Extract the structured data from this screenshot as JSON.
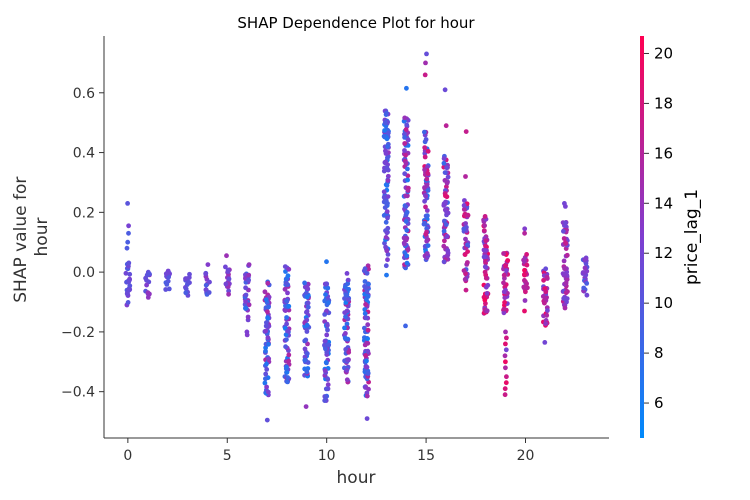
{
  "chart_data": {
    "type": "scatter",
    "title": "SHAP Dependence Plot for hour",
    "xlabel": "hour",
    "ylabel_lines": [
      "SHAP value for",
      "hour"
    ],
    "xlim": [
      -1.2,
      24.2
    ],
    "ylim": [
      -0.555,
      0.79
    ],
    "xticks": [
      0,
      5,
      10,
      15,
      20
    ],
    "yticks": [
      -0.4,
      -0.2,
      0.0,
      0.2,
      0.4,
      0.6
    ],
    "ytick_labels": [
      "−0.4",
      "−0.2",
      "0.0",
      "0.2",
      "0.4",
      "0.6"
    ],
    "grid": false,
    "colorbar": {
      "label": "price_lag_1",
      "range": [
        4.6,
        20.7
      ],
      "ticks": [
        6,
        8,
        10,
        12,
        14,
        16,
        18,
        20
      ],
      "colors": [
        "#008afb",
        "#7f3ed0",
        "#ff0052"
      ]
    },
    "groups": [
      {
        "hour": 0,
        "ymin": -0.11,
        "ymax": 0.04,
        "extra": [
          0.23,
          0.155,
          0.13,
          0.1,
          0.08
        ],
        "cmin": 9,
        "cmax": 13
      },
      {
        "hour": 1,
        "ymin": -0.085,
        "ymax": 0.0,
        "extra": [],
        "cmin": 10,
        "cmax": 14
      },
      {
        "hour": 2,
        "ymin": -0.075,
        "ymax": 0.005,
        "extra": [],
        "cmin": 9,
        "cmax": 12
      },
      {
        "hour": 3,
        "ymin": -0.08,
        "ymax": 0.0,
        "extra": [],
        "cmin": 9,
        "cmax": 12
      },
      {
        "hour": 4,
        "ymin": -0.075,
        "ymax": 0.0,
        "extra": [
          0.025
        ],
        "cmin": 9,
        "cmax": 14
      },
      {
        "hour": 5,
        "ymin": -0.085,
        "ymax": 0.02,
        "extra": [
          0.055
        ],
        "cmin": 10,
        "cmax": 15
      },
      {
        "hour": 6,
        "ymin": -0.13,
        "ymax": 0.035,
        "extra": [
          -0.21,
          -0.2,
          -0.16,
          -0.15
        ],
        "cmin": 7,
        "cmax": 15
      },
      {
        "hour": 7,
        "ymin": -0.42,
        "ymax": -0.03,
        "extra": [
          -0.495
        ],
        "cmin": 6,
        "cmax": 17
      },
      {
        "hour": 8,
        "ymin": -0.37,
        "ymax": 0.02,
        "extra": [],
        "cmin": 6,
        "cmax": 16
      },
      {
        "hour": 9,
        "ymin": -0.35,
        "ymax": -0.03,
        "extra": [
          -0.45
        ],
        "cmin": 6,
        "cmax": 15
      },
      {
        "hour": 10,
        "ymin": -0.43,
        "ymax": -0.03,
        "extra": [
          0.035
        ],
        "cmin": 6,
        "cmax": 14
      },
      {
        "hour": 11,
        "ymin": -0.37,
        "ymax": 0.0,
        "extra": [],
        "cmin": 6,
        "cmax": 16
      },
      {
        "hour": 12,
        "ymin": -0.42,
        "ymax": 0.03,
        "extra": [
          -0.49
        ],
        "cmin": 6,
        "cmax": 17
      },
      {
        "hour": 13,
        "ymin": 0.02,
        "ymax": 0.55,
        "extra": [
          -0.01
        ],
        "cmin": 6,
        "cmax": 14
      },
      {
        "hour": 14,
        "ymin": 0.01,
        "ymax": 0.52,
        "extra": [
          0.615,
          -0.18
        ],
        "cmin": 6,
        "cmax": 17
      },
      {
        "hour": 15,
        "ymin": 0.04,
        "ymax": 0.47,
        "extra": [
          0.73,
          0.7,
          0.66
        ],
        "cmin": 6,
        "cmax": 19
      },
      {
        "hour": 16,
        "ymin": 0.02,
        "ymax": 0.39,
        "extra": [
          0.61,
          0.49
        ],
        "cmin": 8,
        "cmax": 19
      },
      {
        "hour": 17,
        "ymin": -0.03,
        "ymax": 0.24,
        "extra": [
          0.47,
          0.32,
          -0.06
        ],
        "cmin": 9,
        "cmax": 19
      },
      {
        "hour": 18,
        "ymin": -0.14,
        "ymax": 0.19,
        "extra": [],
        "cmin": 11,
        "cmax": 20
      },
      {
        "hour": 19,
        "ymin": -0.14,
        "ymax": 0.07,
        "extra": [
          -0.26,
          -0.28,
          -0.3,
          -0.32,
          -0.35,
          -0.37,
          -0.39,
          -0.41,
          -0.2,
          -0.22,
          -0.24
        ],
        "cmin": 12,
        "cmax": 20
      },
      {
        "hour": 20,
        "ymin": -0.07,
        "ymax": 0.06,
        "extra": [
          0.145,
          0.13,
          -0.095,
          -0.13
        ],
        "cmin": 12,
        "cmax": 20
      },
      {
        "hour": 21,
        "ymin": -0.18,
        "ymax": 0.02,
        "extra": [
          -0.235
        ],
        "cmin": 11,
        "cmax": 20
      },
      {
        "hour": 22,
        "ymin": -0.12,
        "ymax": 0.17,
        "extra": [
          0.23,
          0.22,
          -0.12
        ],
        "cmin": 11,
        "cmax": 17
      },
      {
        "hour": 23,
        "ymin": -0.09,
        "ymax": 0.06,
        "extra": [],
        "cmin": 9,
        "cmax": 14
      }
    ]
  }
}
